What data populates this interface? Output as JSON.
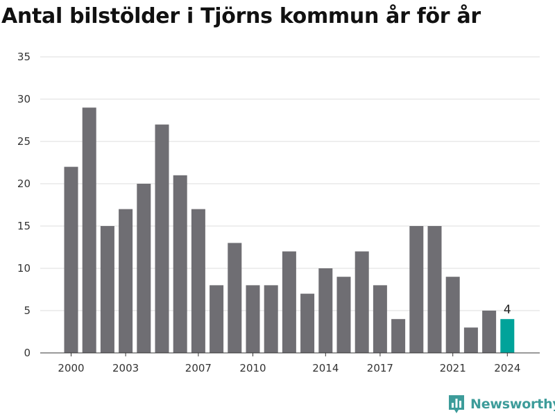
{
  "title": "Antal bilstölder i Tjörns kommun år för år",
  "brand": {
    "name": "Newsworthy",
    "logo_icon": "bar-chart-icon"
  },
  "colors": {
    "bar": "#6f6e73",
    "highlight": "#00a39a",
    "grid": "#dddddd",
    "brand": "#3d9c9a"
  },
  "chart_data": {
    "type": "bar",
    "title": "Antal bilstölder i Tjörns kommun år för år",
    "xlabel": "",
    "ylabel": "",
    "x": [
      2000,
      2001,
      2002,
      2003,
      2004,
      2005,
      2006,
      2007,
      2008,
      2009,
      2010,
      2011,
      2012,
      2013,
      2014,
      2015,
      2016,
      2017,
      2018,
      2019,
      2020,
      2021,
      2022,
      2023,
      2024
    ],
    "values": [
      22,
      29,
      15,
      17,
      20,
      27,
      21,
      17,
      8,
      13,
      8,
      8,
      12,
      7,
      10,
      9,
      12,
      8,
      4,
      15,
      15,
      9,
      3,
      5,
      4
    ],
    "x_tick_labels": [
      "2000",
      "2003",
      "2007",
      "2010",
      "2014",
      "2017",
      "2021",
      "2024"
    ],
    "y_ticks": [
      0,
      5,
      10,
      15,
      20,
      25,
      30,
      35
    ],
    "ylim": [
      0,
      35
    ],
    "grid": true,
    "highlight": {
      "x": 2024,
      "label": "4"
    }
  }
}
